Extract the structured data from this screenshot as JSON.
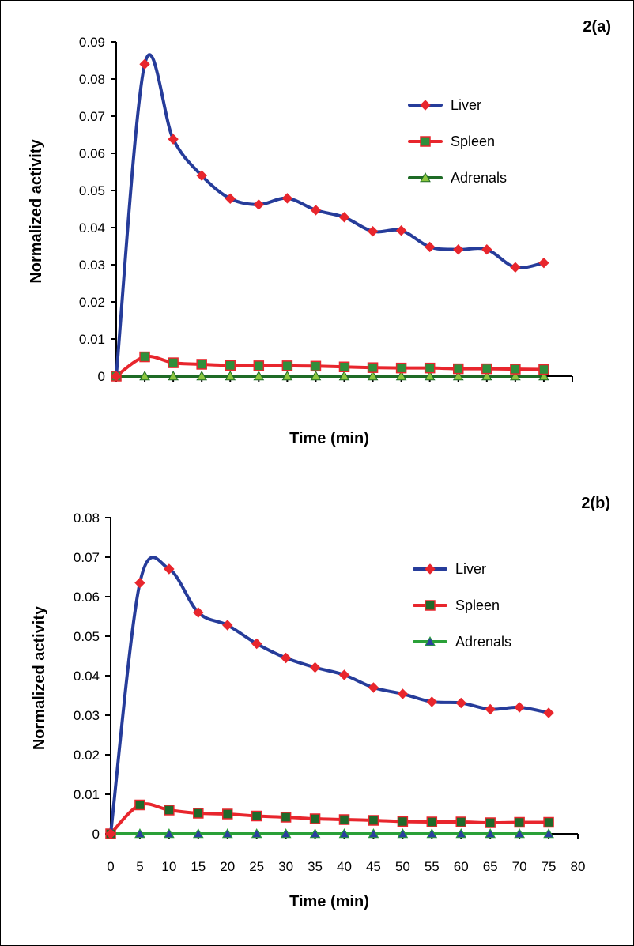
{
  "chart_data": [
    {
      "type": "line",
      "panel_label": "2(a)",
      "xlabel": "Time (min)",
      "ylabel": "Normalized activity",
      "xlim": [
        0,
        80
      ],
      "ylim": [
        0,
        0.09
      ],
      "x_tick_labels_shown": false,
      "y_ticks": [
        "0",
        "0.01",
        "0.02",
        "0.03",
        "0.04",
        "0.05",
        "0.06",
        "0.07",
        "0.08",
        "0.09"
      ],
      "legend_position": "top-right",
      "x": [
        0,
        5,
        10,
        15,
        20,
        25,
        30,
        35,
        40,
        45,
        50,
        55,
        60,
        65,
        70,
        75
      ],
      "series": [
        {
          "name": "Liver",
          "color": "#263c9a",
          "marker": "diamond",
          "marker_color": "#e8262d",
          "values": [
            0,
            0.084,
            0.0638,
            0.054,
            0.0478,
            0.0462,
            0.0479,
            0.0447,
            0.0428,
            0.039,
            0.0392,
            0.0348,
            0.0341,
            0.0341,
            0.0293,
            0.0305
          ]
        },
        {
          "name": "Spleen",
          "color": "#e8262d",
          "marker": "square",
          "marker_color": "#2f8f3b",
          "values": [
            0,
            0.0052,
            0.0036,
            0.0032,
            0.0029,
            0.0028,
            0.0028,
            0.0027,
            0.0025,
            0.0023,
            0.0022,
            0.0022,
            0.002,
            0.002,
            0.0019,
            0.0018
          ]
        },
        {
          "name": "Adrenals",
          "color": "#1e6b26",
          "marker": "triangle",
          "marker_color": "#8cc63f",
          "values": [
            0,
            0,
            0,
            0,
            0,
            0,
            0,
            0,
            0,
            0,
            0,
            0,
            0,
            0,
            0,
            0
          ]
        }
      ]
    },
    {
      "type": "line",
      "panel_label": "2(b)",
      "xlabel": "Time (min)",
      "ylabel": "Normalized activity",
      "xlim": [
        0,
        80
      ],
      "ylim": [
        0,
        0.08
      ],
      "x_ticks": [
        "0",
        "5",
        "10",
        "15",
        "20",
        "25",
        "30",
        "35",
        "40",
        "45",
        "50",
        "55",
        "60",
        "65",
        "70",
        "75",
        "80"
      ],
      "y_ticks": [
        "0",
        "0.01",
        "0.02",
        "0.03",
        "0.04",
        "0.05",
        "0.06",
        "0.07",
        "0.08"
      ],
      "legend_position": "top-right",
      "x": [
        0,
        5,
        10,
        15,
        20,
        25,
        30,
        35,
        40,
        45,
        50,
        55,
        60,
        65,
        70,
        75
      ],
      "series": [
        {
          "name": "Liver",
          "color": "#263c9a",
          "marker": "diamond",
          "marker_color": "#e8262d",
          "values": [
            0,
            0.0635,
            0.067,
            0.056,
            0.0528,
            0.0481,
            0.0445,
            0.0421,
            0.0402,
            0.037,
            0.0354,
            0.0334,
            0.0331,
            0.0315,
            0.032,
            0.0306
          ]
        },
        {
          "name": "Spleen",
          "color": "#e8262d",
          "marker": "square",
          "marker_color": "#1f6a2a",
          "values": [
            0,
            0.0073,
            0.006,
            0.0052,
            0.005,
            0.0045,
            0.0042,
            0.0038,
            0.0036,
            0.0034,
            0.0031,
            0.003,
            0.003,
            0.0028,
            0.0029,
            0.0029
          ]
        },
        {
          "name": "Adrenals",
          "color": "#2aa038",
          "marker": "triangle",
          "marker_color": "#2b3f9e",
          "values": [
            0,
            0,
            0,
            0,
            0,
            0,
            0,
            0,
            0,
            0,
            0,
            0,
            0,
            0,
            0,
            0
          ]
        }
      ]
    }
  ]
}
